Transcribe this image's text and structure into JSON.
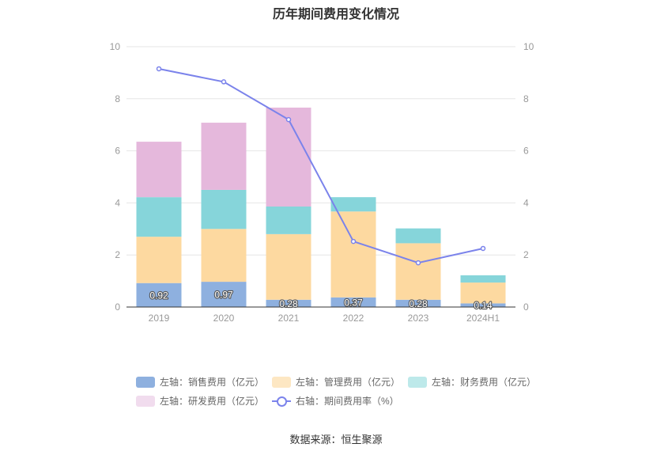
{
  "chart_data": {
    "type": "bar",
    "title": "历年期间费用变化情况",
    "categories": [
      "2019",
      "2020",
      "2021",
      "2022",
      "2023",
      "2024H1"
    ],
    "series": [
      {
        "name": "左轴：销售费用（亿元）",
        "kind": "bar",
        "axis": "left",
        "color": "#8eb0df",
        "values": [
          0.92,
          0.97,
          0.28,
          0.37,
          0.28,
          0.14
        ]
      },
      {
        "name": "左轴：管理费用（亿元）",
        "kind": "bar",
        "axis": "left",
        "color": "#fdd9a0",
        "values": [
          1.78,
          2.03,
          2.52,
          3.3,
          2.17,
          0.8
        ]
      },
      {
        "name": "左轴：财务费用（亿元）",
        "kind": "bar",
        "axis": "left",
        "color": "#86d5da",
        "values": [
          1.52,
          1.5,
          1.06,
          0.55,
          0.57,
          0.28
        ]
      },
      {
        "name": "左轴：研发费用（亿元）",
        "kind": "bar",
        "axis": "left",
        "color": "#e5b8dc",
        "values": [
          2.13,
          2.58,
          3.8,
          0,
          0,
          0
        ]
      },
      {
        "name": "右轴：期间费用率（%）",
        "kind": "line",
        "axis": "right",
        "color": "#7b83eb",
        "values": [
          9.15,
          8.65,
          7.2,
          2.52,
          1.7,
          2.25
        ]
      }
    ],
    "data_labels": [
      "0.92",
      "0.97",
      "0.28",
      "0.37",
      "0.28",
      "0.14"
    ],
    "ylim_left": [
      0,
      10
    ],
    "ylim_right": [
      0,
      10
    ],
    "yticks": [
      "0",
      "2",
      "4",
      "6",
      "8",
      "10"
    ],
    "grid": true,
    "legend_position": "bottom"
  },
  "legend": {
    "items": [
      {
        "label": "左轴：销售费用（亿元）",
        "color": "#8eb0df"
      },
      {
        "label": "左轴：管理费用（亿元）",
        "color": "#fde7c3"
      },
      {
        "label": "左轴：财务费用（亿元）",
        "color": "#bde9ea"
      },
      {
        "label": "左轴：研发费用（亿元）",
        "color": "#f1dcee"
      },
      {
        "label": "右轴：期间费用率（%）",
        "color": "#7b83eb"
      }
    ]
  },
  "source": "数据来源：恒生聚源"
}
